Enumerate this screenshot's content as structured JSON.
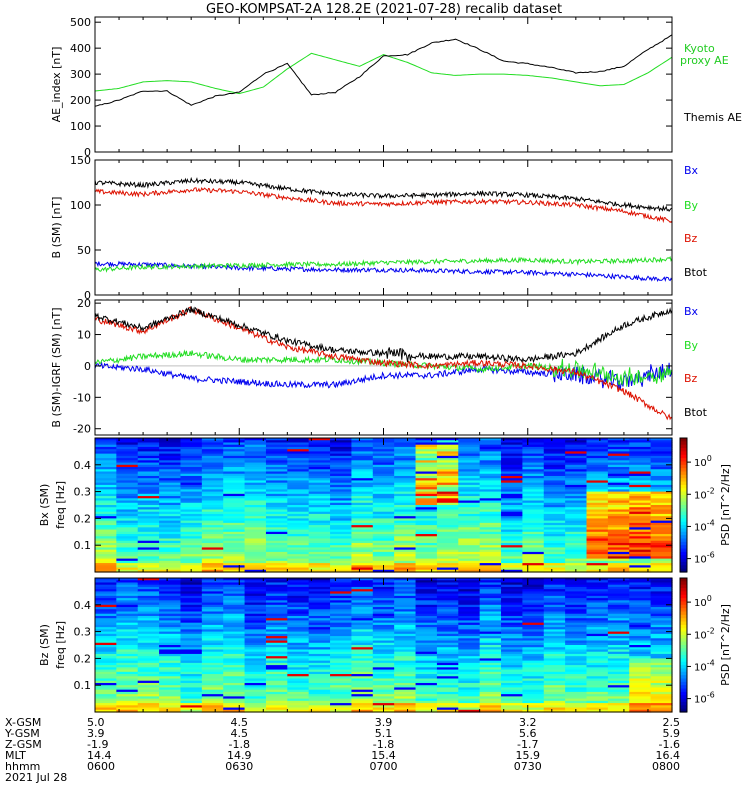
{
  "title": "GEO-KOMPSAT-2A 128.2E (2021-07-28) recalib dataset",
  "colors": {
    "black": "#000000",
    "blue": "#0000ee",
    "green": "#22dd22",
    "red": "#dd1100",
    "kyoto": "#22cc22"
  },
  "chart_data": [
    {
      "type": "line",
      "ylabel": "AE_index [nT]",
      "ylim": [
        0,
        520
      ],
      "yticks": [
        "0",
        "100",
        "200",
        "300",
        "400",
        "500"
      ],
      "x": [
        0,
        5,
        10,
        15,
        20,
        25,
        30,
        35,
        40,
        45,
        50,
        55,
        60,
        65,
        70,
        75,
        80,
        85,
        90,
        95,
        100,
        105,
        110,
        115,
        120
      ],
      "series": [
        {
          "name": "Kyoto proxy AE",
          "color": "green",
          "values": [
            235,
            245,
            270,
            275,
            270,
            245,
            225,
            250,
            320,
            380,
            355,
            330,
            375,
            345,
            305,
            295,
            300,
            300,
            295,
            285,
            270,
            255,
            260,
            305,
            365
          ]
        },
        {
          "name": "Themis AE",
          "color": "black",
          "values": [
            175,
            200,
            235,
            235,
            180,
            215,
            230,
            300,
            340,
            220,
            230,
            290,
            370,
            375,
            420,
            435,
            395,
            350,
            340,
            325,
            305,
            310,
            330,
            395,
            450
          ]
        }
      ]
    },
    {
      "type": "line",
      "ylabel": "B (SM) [nT]",
      "ylim": [
        0,
        150
      ],
      "yticks": [
        "0",
        "50",
        "100",
        "150"
      ],
      "x": [
        0,
        10,
        20,
        30,
        40,
        50,
        60,
        70,
        80,
        90,
        100,
        110,
        120
      ],
      "series": [
        {
          "name": "Bx",
          "color": "blue",
          "values": [
            35,
            34,
            32,
            30,
            29,
            28,
            28,
            27,
            26,
            25,
            23,
            20,
            17
          ]
        },
        {
          "name": "By",
          "color": "green",
          "values": [
            28,
            31,
            32,
            33,
            34,
            34,
            36,
            37,
            38,
            39,
            37,
            38,
            40
          ]
        },
        {
          "name": "Bz",
          "color": "red",
          "values": [
            115,
            112,
            117,
            115,
            108,
            102,
            101,
            103,
            104,
            103,
            100,
            93,
            82
          ]
        },
        {
          "name": "Btot",
          "color": "black",
          "values": [
            125,
            122,
            127,
            125,
            118,
            112,
            110,
            111,
            113,
            111,
            107,
            100,
            95
          ]
        }
      ]
    },
    {
      "type": "line",
      "ylabel": "B (SM)-IGRF (SM) [nT]",
      "ylim": [
        -22,
        21
      ],
      "yticks": [
        "-20",
        "-10",
        "0",
        "10",
        "20"
      ],
      "x": [
        0,
        10,
        20,
        30,
        40,
        50,
        60,
        70,
        80,
        90,
        100,
        110,
        120
      ],
      "series": [
        {
          "name": "Bx",
          "color": "blue",
          "values": [
            0,
            -1,
            -4,
            -5,
            -6,
            -6,
            -3,
            -3,
            -1,
            -2,
            -3,
            -5,
            -1
          ]
        },
        {
          "name": "By",
          "color": "green",
          "values": [
            1,
            3,
            4,
            2,
            2,
            2,
            1,
            0,
            -1,
            0,
            -1,
            -4,
            -2
          ]
        },
        {
          "name": "Bz",
          "color": "red",
          "values": [
            15,
            11,
            18,
            12,
            6,
            3,
            1,
            0,
            1,
            0,
            -2,
            -8,
            -17
          ]
        },
        {
          "name": "Btot",
          "color": "black",
          "values": [
            16,
            12,
            18,
            13,
            8,
            5,
            4,
            3,
            3,
            2,
            4,
            13,
            18
          ]
        }
      ]
    },
    {
      "type": "heatmap",
      "ylabel": "Bx (SM) freq [Hz]",
      "ylim": [
        0,
        0.5
      ],
      "yticks": [
        "0.1",
        "0.2",
        "0.3",
        "0.4"
      ],
      "colorbar": {
        "label": "PSD [nT^2/Hz]",
        "ticks": [
          "10^0",
          "10^-2",
          "10^-4",
          "10^-6"
        ]
      }
    },
    {
      "type": "heatmap",
      "ylabel": "Bz (SM) freq [Hz]",
      "ylim": [
        0,
        0.5
      ],
      "yticks": [
        "0.1",
        "0.2",
        "0.3",
        "0.4"
      ],
      "colorbar": {
        "label": "PSD [nT^2/Hz]",
        "ticks": [
          "10^0",
          "10^-2",
          "10^-4",
          "10^-6"
        ]
      }
    }
  ],
  "ephemeris": {
    "row_labels": [
      "X-GSM",
      "Y-GSM",
      "Z-GSM",
      "MLT",
      "hhmm"
    ],
    "date": "2021 Jul 28",
    "columns": [
      [
        "5.0",
        "3.9",
        "-1.9",
        "14.4",
        "0600"
      ],
      [
        "4.5",
        "4.5",
        "-1.8",
        "14.9",
        "0630"
      ],
      [
        "3.9",
        "5.1",
        "-1.8",
        "15.4",
        "0700"
      ],
      [
        "3.2",
        "5.6",
        "-1.7",
        "15.9",
        "0730"
      ],
      [
        "2.5",
        "5.9",
        "-1.6",
        "16.4",
        "0800"
      ]
    ]
  }
}
